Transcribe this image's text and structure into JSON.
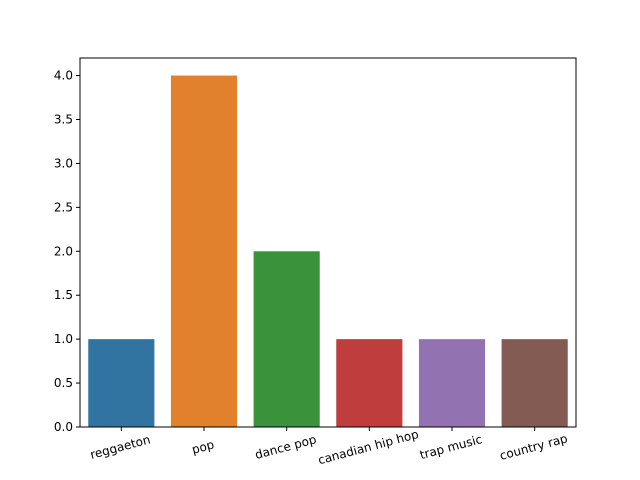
{
  "chart_data": {
    "type": "bar",
    "title": "",
    "xlabel": "",
    "ylabel": "",
    "categories": [
      "reggaeton",
      "pop",
      "dance pop",
      "canadian hip hop",
      "trap music",
      "country rap"
    ],
    "values": [
      1,
      4,
      2,
      1,
      1,
      1
    ],
    "colors": [
      "#3274a1",
      "#e1812c",
      "#3a923a",
      "#c03d3e",
      "#9372b2",
      "#845b53"
    ],
    "ylim": [
      0,
      4.2
    ],
    "yticks": [
      0.0,
      0.5,
      1.0,
      1.5,
      2.0,
      2.5,
      3.0,
      3.5,
      4.0
    ],
    "ytick_labels": [
      "0.0",
      "0.5",
      "1.0",
      "1.5",
      "2.0",
      "2.5",
      "3.0",
      "3.5",
      "4.0"
    ],
    "xtick_rotation_deg": 15,
    "grid": false,
    "legend": "none"
  }
}
